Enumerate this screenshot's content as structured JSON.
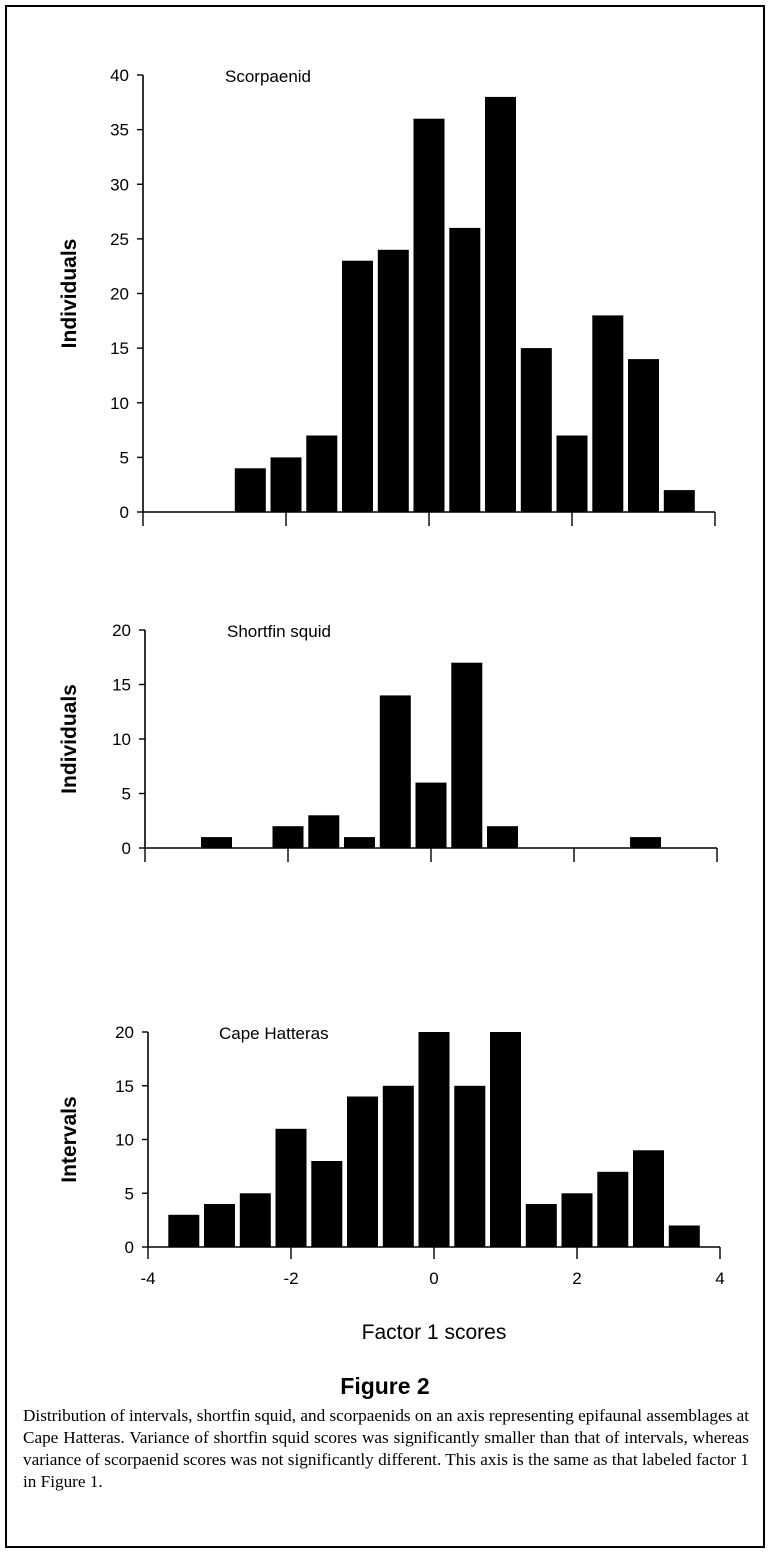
{
  "figure": {
    "title": "Figure 2",
    "caption": "Distribution of intervals, shortfin squid, and scorpaenids on an axis representing epifaunal assemblages at Cape Hatteras. Variance of shortfin squid scores was significantly smaller than that of intervals, whereas variance of scorpaenid scores was not significantly different. This axis is the same as that labeled factor 1 in Figure 1."
  },
  "chart_data": [
    {
      "type": "bar",
      "title": "Scorpaenid",
      "ylabel": "Individuals",
      "xlabel": "",
      "xlim": [
        -4,
        4
      ],
      "ylim": [
        0,
        40
      ],
      "yticks": [
        0,
        5,
        10,
        15,
        20,
        25,
        30,
        35,
        40
      ],
      "xticks": [
        -4,
        -2,
        0,
        2,
        4
      ],
      "x_tick_labels_shown": false,
      "bar_color": "#000000",
      "x": [
        -2.5,
        -2.0,
        -1.5,
        -1.0,
        -0.5,
        0.0,
        0.5,
        1.0,
        1.5,
        2.0,
        2.5,
        3.0,
        3.5
      ],
      "values": [
        4,
        5,
        7,
        23,
        24,
        36,
        26,
        38,
        15,
        7,
        18,
        14,
        2
      ]
    },
    {
      "type": "bar",
      "title": "Shortfin squid",
      "ylabel": "Individuals",
      "xlabel": "",
      "xlim": [
        -4,
        4
      ],
      "ylim": [
        0,
        20
      ],
      "yticks": [
        0,
        5,
        10,
        15,
        20
      ],
      "xticks": [
        -4,
        -2,
        0,
        2,
        4
      ],
      "x_tick_labels_shown": false,
      "bar_color": "#000000",
      "x": [
        -3.0,
        -2.0,
        -1.5,
        -1.0,
        -0.5,
        0.0,
        0.5,
        1.0,
        3.0
      ],
      "values": [
        1,
        2,
        3,
        1,
        14,
        6,
        17,
        2,
        1
      ]
    },
    {
      "type": "bar",
      "title": "Cape Hatteras",
      "ylabel": "Intervals",
      "xlabel": "Factor 1 scores",
      "xlim": [
        -4,
        4
      ],
      "ylim": [
        0,
        20
      ],
      "yticks": [
        0,
        5,
        10,
        15,
        20
      ],
      "xticks": [
        -4,
        -2,
        0,
        2,
        4
      ],
      "x_tick_labels_shown": true,
      "bar_color": "#000000",
      "x": [
        -3.5,
        -3.0,
        -2.5,
        -2.0,
        -1.5,
        -1.0,
        -0.5,
        0.0,
        0.5,
        1.0,
        1.5,
        2.0,
        2.5,
        3.0,
        3.5
      ],
      "values": [
        3,
        4,
        5,
        11,
        8,
        14,
        15,
        20,
        15,
        20,
        4,
        5,
        7,
        9,
        2
      ]
    }
  ]
}
